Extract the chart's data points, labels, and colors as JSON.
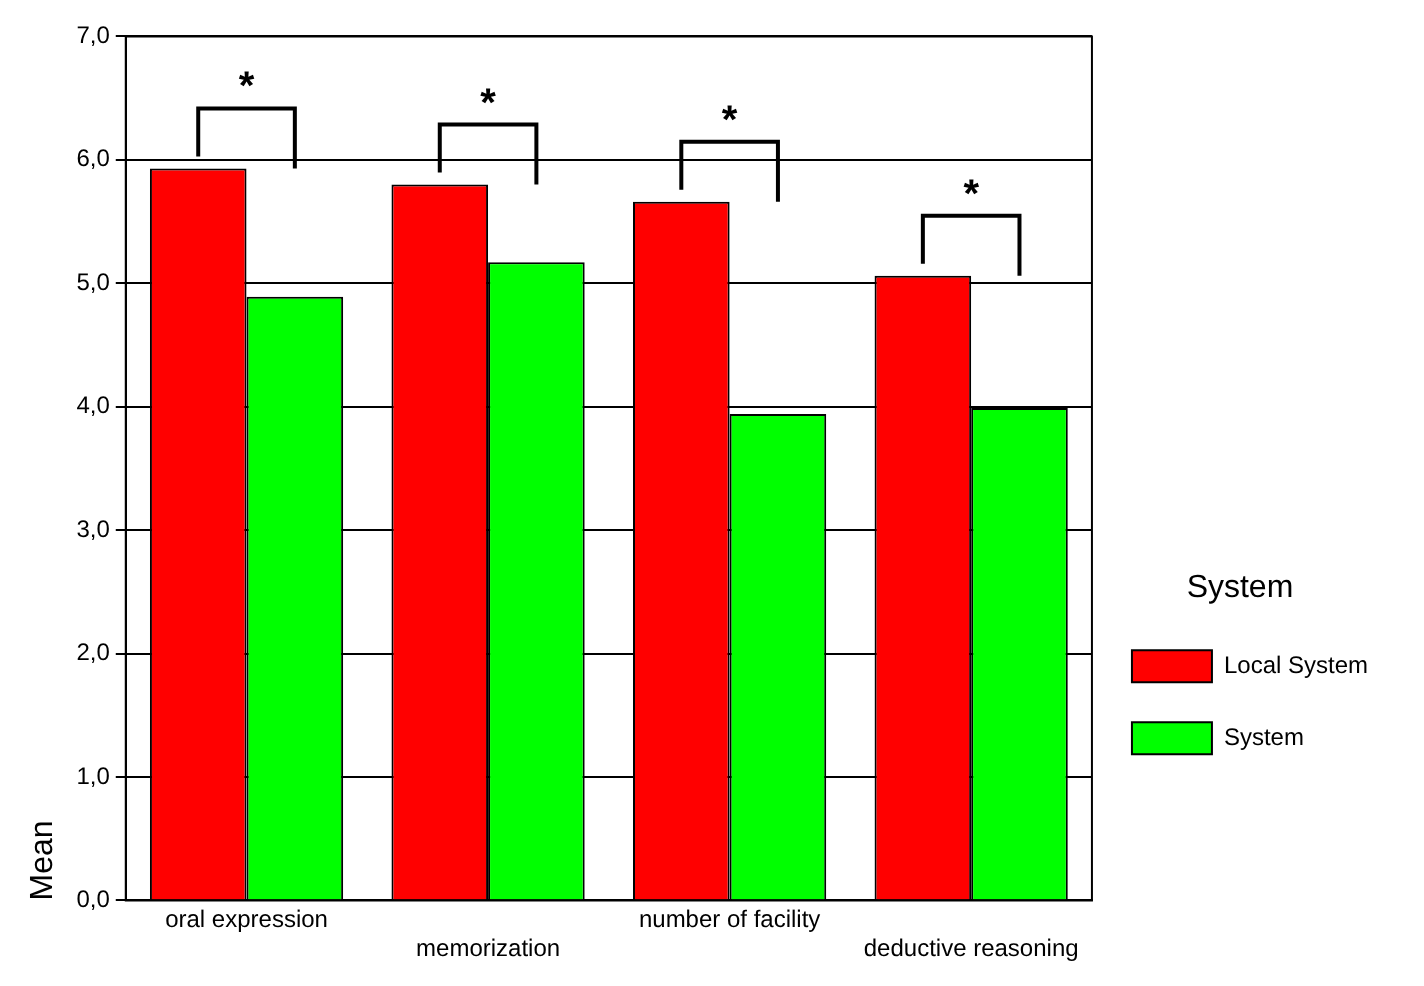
{
  "chart_data": {
    "type": "bar",
    "ylabel": "Mean",
    "legend_title": "System",
    "legend": "right",
    "categories": [
      "oral expression",
      "memorization",
      "number of facility",
      "deductive reasoning"
    ],
    "series": [
      {
        "name": "Local System",
        "color": "#ff0000",
        "values": [
          5.93,
          5.8,
          5.66,
          5.06
        ]
      },
      {
        "name": "System",
        "color": "#00ff00",
        "values": [
          4.89,
          5.17,
          3.94,
          3.99
        ]
      }
    ],
    "ylim": [
      0,
      7
    ],
    "yticks": [
      {
        "value": 0,
        "label": "0,0"
      },
      {
        "value": 1,
        "label": "1,0"
      },
      {
        "value": 2,
        "label": "2,0"
      },
      {
        "value": 3,
        "label": "3,0"
      },
      {
        "value": 4,
        "label": "4,0"
      },
      {
        "value": 5,
        "label": "5,0"
      },
      {
        "value": 6,
        "label": "6,0"
      },
      {
        "value": 7,
        "label": "7,0"
      }
    ],
    "grid": "y",
    "annotations": [
      "*",
      "*",
      "*",
      "*"
    ]
  }
}
